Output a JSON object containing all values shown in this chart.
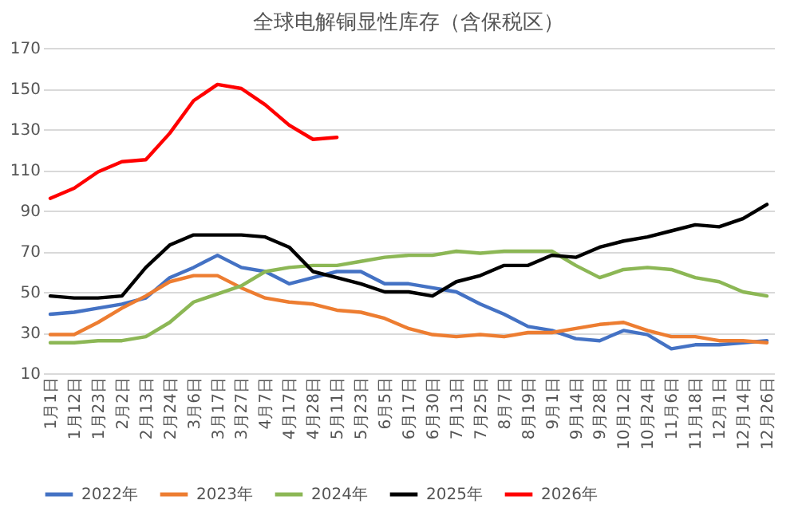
{
  "chart_data": {
    "type": "line",
    "title": "全球电解铜显性库存（含保税区）",
    "categories": [
      "1月1日",
      "1月12日",
      "1月23日",
      "2月2日",
      "2月13日",
      "2月24日",
      "3月6日",
      "3月17日",
      "3月27日",
      "4月7日",
      "4月17日",
      "4月28日",
      "5月11日",
      "5月23日",
      "6月5日",
      "6月17日",
      "6月30日",
      "7月13日",
      "7月25日",
      "8月7日",
      "8月19日",
      "9月1日",
      "9月14日",
      "9月28日",
      "10月12日",
      "10月24日",
      "11月6日",
      "11月18日",
      "12月1日",
      "12月14日",
      "12月26日"
    ],
    "series": [
      {
        "name": "2022年",
        "color": "#4472c4",
        "values": [
          39,
          40,
          42,
          44,
          47,
          57,
          62,
          68,
          62,
          60,
          54,
          57,
          60,
          60,
          54,
          54,
          52,
          50,
          44,
          39,
          33,
          31,
          27,
          26,
          31,
          29,
          22,
          24,
          24,
          25,
          26
        ]
      },
      {
        "name": "2023年",
        "color": "#ed7d31",
        "values": [
          29,
          29,
          35,
          42,
          48,
          55,
          58,
          58,
          52,
          47,
          45,
          44,
          41,
          40,
          37,
          32,
          29,
          28,
          29,
          28,
          30,
          30,
          32,
          34,
          35,
          31,
          28,
          28,
          26,
          26,
          25
        ]
      },
      {
        "name": "2024年",
        "color": "#8cb755",
        "values": [
          25,
          25,
          26,
          26,
          28,
          35,
          45,
          49,
          53,
          60,
          62,
          63,
          63,
          65,
          67,
          68,
          68,
          70,
          69,
          70,
          70,
          70,
          63,
          57,
          61,
          62,
          61,
          57,
          55,
          50,
          48
        ]
      },
      {
        "name": "2025年",
        "color": "#000000",
        "values": [
          48,
          47,
          47,
          48,
          62,
          73,
          78,
          78,
          78,
          77,
          72,
          60,
          57,
          54,
          50,
          50,
          48,
          55,
          58,
          63,
          63,
          68,
          67,
          72,
          75,
          77,
          80,
          83,
          82,
          86,
          93
        ]
      },
      {
        "name": "2026年",
        "color": "#ff0000",
        "values": [
          96,
          101,
          109,
          114,
          115,
          128,
          144,
          152,
          150,
          142,
          132,
          125,
          126,
          null,
          null,
          null,
          null,
          null,
          null,
          null,
          null,
          null,
          null,
          null,
          null,
          null,
          null,
          null,
          null,
          null,
          null
        ]
      }
    ],
    "ylim": [
      10,
      170
    ],
    "yticks": [
      10,
      30,
      50,
      70,
      90,
      110,
      130,
      150,
      170
    ],
    "grid": "y",
    "legend": "bottom"
  }
}
